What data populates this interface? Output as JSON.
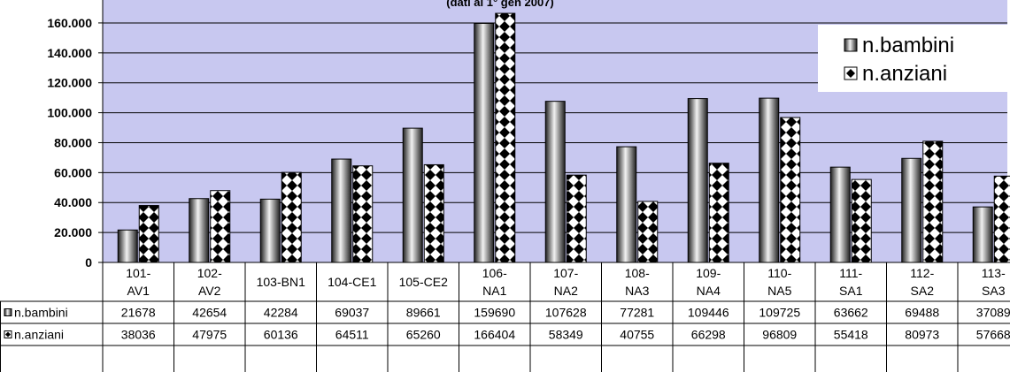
{
  "chart_data": {
    "type": "bar",
    "title": "(dati al 1° gen 2007)",
    "categories": [
      [
        "101-",
        "AV1"
      ],
      [
        "102-",
        "AV2"
      ],
      [
        "103-BN1"
      ],
      [
        "104-CE1"
      ],
      [
        "105-CE2"
      ],
      [
        "106-",
        "NA1"
      ],
      [
        "107-",
        "NA2"
      ],
      [
        "108-",
        "NA3"
      ],
      [
        "109-",
        "NA4"
      ],
      [
        "110-",
        "NA5"
      ],
      [
        "111-",
        "SA1"
      ],
      [
        "112-",
        "SA2"
      ],
      [
        "113-",
        "SA3"
      ]
    ],
    "series": [
      {
        "name": "n.bambini",
        "pattern": "cylinder-gradient",
        "values": [
          21678,
          42654,
          42284,
          69037,
          89661,
          159690,
          107628,
          77281,
          109446,
          109725,
          63662,
          69488,
          37089
        ]
      },
      {
        "name": "n.anziani",
        "pattern": "diamond-checker",
        "values": [
          38036,
          47975,
          60136,
          64511,
          65260,
          166404,
          58349,
          40755,
          66298,
          96809,
          55418,
          80973,
          57668
        ]
      }
    ],
    "y_ticks": [
      "0",
      "20.000",
      "40.000",
      "60.000",
      "80.000",
      "100.000",
      "120.000",
      "140.000",
      "160.000"
    ],
    "ylim": [
      0,
      170000
    ],
    "grid": true,
    "legend_position": "top-right",
    "data_table": true,
    "plot_background": "#c8c8f0"
  }
}
